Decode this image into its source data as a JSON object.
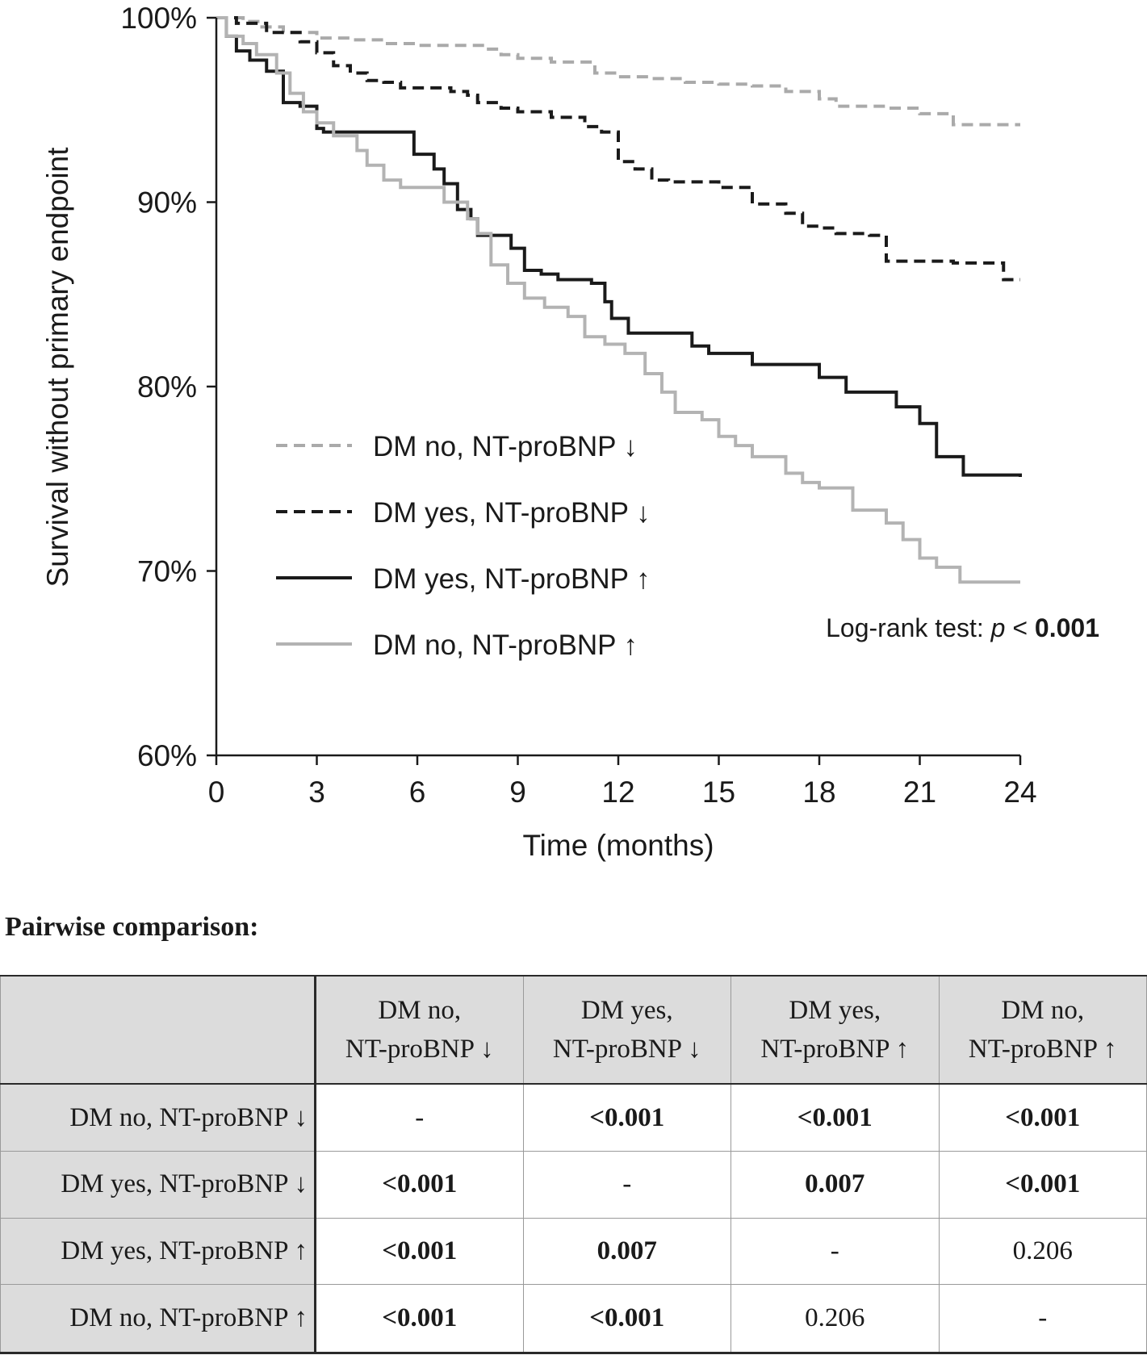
{
  "chart_data": {
    "type": "line",
    "subtype": "kaplan-meier step",
    "ylabel": "Survival without primary endpoint",
    "xlabel": "Time (months)",
    "xlim": [
      0,
      24
    ],
    "ylim": [
      60,
      100
    ],
    "x_ticks": [
      "0",
      "3",
      "6",
      "9",
      "12",
      "15",
      "18",
      "21",
      "24"
    ],
    "y_ticks": [
      "60%",
      "70%",
      "80%",
      "90%",
      "100%"
    ],
    "grid": false,
    "legend_position": "center-left",
    "annotation": {
      "prefix": "Log-rank test: ",
      "p": "p",
      "op": " < ",
      "value": "0.001"
    },
    "series": [
      {
        "name": "DM no, NT-proBNP ↓",
        "color": "#aaaaaa",
        "dash": "dashed",
        "points": [
          [
            0,
            100
          ],
          [
            0.8,
            99.8
          ],
          [
            1.3,
            99.5
          ],
          [
            2,
            99.2
          ],
          [
            3,
            98.9
          ],
          [
            4,
            98.8
          ],
          [
            5,
            98.6
          ],
          [
            6,
            98.5
          ],
          [
            8,
            98.3
          ],
          [
            8.5,
            98.0
          ],
          [
            9,
            97.8
          ],
          [
            10,
            97.6
          ],
          [
            11.3,
            97.0
          ],
          [
            12,
            96.8
          ],
          [
            13,
            96.7
          ],
          [
            14,
            96.5
          ],
          [
            15,
            96.4
          ],
          [
            16,
            96.3
          ],
          [
            17,
            96.0
          ],
          [
            18,
            95.6
          ],
          [
            18.5,
            95.2
          ],
          [
            20,
            95.1
          ],
          [
            21,
            94.8
          ],
          [
            22,
            94.2
          ],
          [
            24,
            94.2
          ]
        ]
      },
      {
        "name": "DM yes, NT-proBNP ↓",
        "color": "#1a1a1a",
        "dash": "dashed",
        "points": [
          [
            0,
            100
          ],
          [
            0.6,
            99.7
          ],
          [
            1.5,
            99.2
          ],
          [
            2.5,
            98.7
          ],
          [
            3,
            98.1
          ],
          [
            3.5,
            97.4
          ],
          [
            4,
            97.0
          ],
          [
            4.5,
            96.6
          ],
          [
            5,
            96.5
          ],
          [
            5.5,
            96.2
          ],
          [
            7,
            96.0
          ],
          [
            7.5,
            95.8
          ],
          [
            7.8,
            95.4
          ],
          [
            8.5,
            95.1
          ],
          [
            9,
            94.9
          ],
          [
            10,
            94.6
          ],
          [
            11,
            94.1
          ],
          [
            11.5,
            93.8
          ],
          [
            12,
            92.2
          ],
          [
            12.5,
            91.8
          ],
          [
            13,
            91.2
          ],
          [
            13.5,
            91.1
          ],
          [
            15,
            90.8
          ],
          [
            16,
            89.9
          ],
          [
            17,
            89.4
          ],
          [
            17.5,
            88.7
          ],
          [
            18,
            88.6
          ],
          [
            18.5,
            88.3
          ],
          [
            19.5,
            88.2
          ],
          [
            20,
            86.8
          ],
          [
            22,
            86.7
          ],
          [
            23.5,
            85.8
          ],
          [
            24,
            85.8
          ]
        ]
      },
      {
        "name": "DM yes, NT-proBNP ↑",
        "color": "#1a1a1a",
        "dash": "solid",
        "points": [
          [
            0,
            100
          ],
          [
            0.3,
            99
          ],
          [
            0.6,
            98.2
          ],
          [
            1,
            97.7
          ],
          [
            1.5,
            97.1
          ],
          [
            2,
            95.4
          ],
          [
            2.5,
            95.2
          ],
          [
            3,
            94.0
          ],
          [
            3.2,
            93.8
          ],
          [
            5.8,
            93.8
          ],
          [
            5.9,
            92.6
          ],
          [
            6.5,
            91.8
          ],
          [
            6.8,
            91.0
          ],
          [
            7.2,
            89.6
          ],
          [
            7.6,
            89.1
          ],
          [
            7.8,
            88.2
          ],
          [
            8.8,
            87.5
          ],
          [
            9.2,
            86.3
          ],
          [
            9.7,
            86.1
          ],
          [
            10.2,
            85.8
          ],
          [
            11.2,
            85.6
          ],
          [
            11.6,
            84.6
          ],
          [
            11.8,
            83.7
          ],
          [
            12.3,
            82.9
          ],
          [
            14.2,
            82.2
          ],
          [
            14.7,
            81.8
          ],
          [
            16.0,
            81.2
          ],
          [
            18.0,
            80.5
          ],
          [
            18.8,
            79.7
          ],
          [
            20.3,
            78.9
          ],
          [
            21.0,
            78.0
          ],
          [
            21.5,
            76.2
          ],
          [
            22.3,
            75.2
          ],
          [
            24,
            75.1
          ]
        ]
      },
      {
        "name": "DM no, NT-proBNP ↑",
        "color": "#b3b3b3",
        "dash": "solid",
        "points": [
          [
            0,
            100
          ],
          [
            0.3,
            99.0
          ],
          [
            0.8,
            98.6
          ],
          [
            1.2,
            98.0
          ],
          [
            1.8,
            97.0
          ],
          [
            2.2,
            95.9
          ],
          [
            2.6,
            94.9
          ],
          [
            3.0,
            94.3
          ],
          [
            3.5,
            93.6
          ],
          [
            4.2,
            92.8
          ],
          [
            4.5,
            92.0
          ],
          [
            5.0,
            91.2
          ],
          [
            5.5,
            90.8
          ],
          [
            6.8,
            90.0
          ],
          [
            7.5,
            89.1
          ],
          [
            7.8,
            88.3
          ],
          [
            8.2,
            86.6
          ],
          [
            8.7,
            85.6
          ],
          [
            9.2,
            84.8
          ],
          [
            9.8,
            84.3
          ],
          [
            10.5,
            83.8
          ],
          [
            11.0,
            82.7
          ],
          [
            11.6,
            82.3
          ],
          [
            12.2,
            81.8
          ],
          [
            12.8,
            80.7
          ],
          [
            13.3,
            79.7
          ],
          [
            13.7,
            78.6
          ],
          [
            14.5,
            78.2
          ],
          [
            15.0,
            77.3
          ],
          [
            15.5,
            76.8
          ],
          [
            16.0,
            76.2
          ],
          [
            17.0,
            75.3
          ],
          [
            17.5,
            74.8
          ],
          [
            18.0,
            74.5
          ],
          [
            19.0,
            73.3
          ],
          [
            20.0,
            72.6
          ],
          [
            20.5,
            71.7
          ],
          [
            21.0,
            70.7
          ],
          [
            21.5,
            70.2
          ],
          [
            22.2,
            69.4
          ],
          [
            24,
            69.4
          ]
        ]
      }
    ]
  },
  "table": {
    "title": "Pairwise comparison:",
    "columns": [
      {
        "line1": "DM no,",
        "line2": "NT-proBNP ↓"
      },
      {
        "line1": "DM yes,",
        "line2": "NT-proBNP ↓"
      },
      {
        "line1": "DM yes,",
        "line2": "NT-proBNP ↑"
      },
      {
        "line1": "DM no,",
        "line2": "NT-proBNP ↑"
      }
    ],
    "rows": [
      {
        "label": "DM no, NT-proBNP ↓",
        "cells": [
          "-",
          "<0.001",
          "<0.001",
          "<0.001"
        ]
      },
      {
        "label": "DM yes, NT-proBNP ↓",
        "cells": [
          "<0.001",
          "-",
          "0.007",
          "<0.001"
        ]
      },
      {
        "label": "DM yes, NT-proBNP ↑",
        "cells": [
          "<0.001",
          "0.007",
          "-",
          "0.206"
        ]
      },
      {
        "label": "DM no, NT-proBNP ↑",
        "cells": [
          "<0.001",
          "<0.001",
          "0.206",
          "-"
        ]
      }
    ],
    "significant": [
      [
        false,
        true,
        true,
        true
      ],
      [
        true,
        false,
        true,
        true
      ],
      [
        true,
        true,
        false,
        false
      ],
      [
        true,
        true,
        false,
        false
      ]
    ]
  }
}
